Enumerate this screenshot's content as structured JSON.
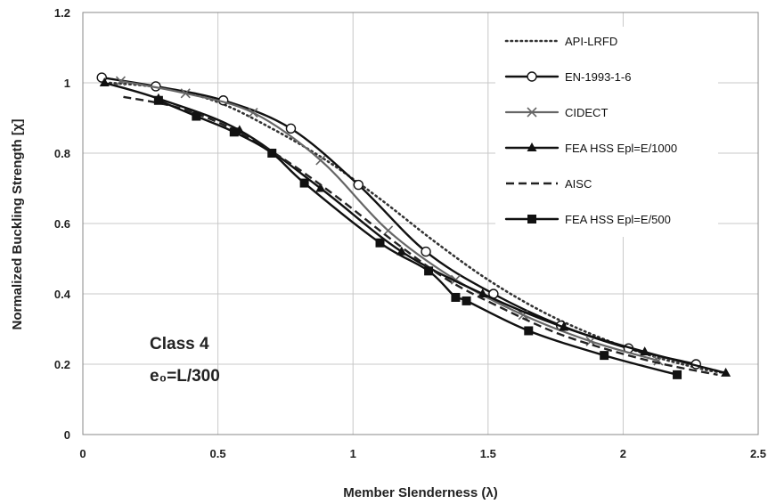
{
  "chart_data": {
    "type": "line",
    "title": "",
    "xlabel": "Member Slenderness (λ)",
    "ylabel": "Normalized Buckling Strength [χ]",
    "xlim": [
      0,
      2.5
    ],
    "ylim": [
      0,
      1.2
    ],
    "xticks": [
      "0",
      "0.5",
      "1",
      "1.5",
      "2",
      "2.5"
    ],
    "yticks": [
      "0",
      "0.2",
      "0.4",
      "0.6",
      "0.8",
      "1",
      "1.2"
    ],
    "grid": true,
    "legend_position": "top-right",
    "annotations": [
      "Class 4",
      "e₀=L/300"
    ],
    "series": [
      {
        "name": "API-LRFD",
        "style": "dotted",
        "color": "#333333",
        "marker": "none",
        "x": [
          0.1,
          0.3,
          0.5,
          0.7,
          0.9,
          1.1,
          1.3,
          1.5,
          1.7,
          1.9,
          2.1,
          2.3,
          2.38
        ],
        "y": [
          1.0,
          0.985,
          0.945,
          0.87,
          0.78,
          0.67,
          0.55,
          0.44,
          0.35,
          0.28,
          0.225,
          0.185,
          0.175
        ]
      },
      {
        "name": "EN-1993-1-6",
        "style": "solid",
        "color": "#111111",
        "marker": "circle",
        "x": [
          0.07,
          0.27,
          0.52,
          0.77,
          1.02,
          1.27,
          1.52,
          1.77,
          2.02,
          2.27
        ],
        "y": [
          1.015,
          0.99,
          0.95,
          0.87,
          0.71,
          0.52,
          0.4,
          0.31,
          0.245,
          0.2
        ]
      },
      {
        "name": "CIDECT",
        "style": "solid",
        "color": "#666666",
        "marker": "x",
        "x": [
          0.14,
          0.38,
          0.63,
          0.88,
          1.13,
          1.38,
          1.63,
          1.88,
          2.13
        ],
        "y": [
          1.005,
          0.97,
          0.915,
          0.78,
          0.58,
          0.44,
          0.34,
          0.265,
          0.21
        ]
      },
      {
        "name": "FEA HSS Epl=E/1000",
        "style": "solid",
        "color": "#111111",
        "marker": "triangle",
        "x": [
          0.08,
          0.28,
          0.58,
          0.88,
          1.18,
          1.48,
          1.78,
          2.08,
          2.38
        ],
        "y": [
          1.0,
          0.955,
          0.865,
          0.7,
          0.52,
          0.4,
          0.305,
          0.235,
          0.175
        ]
      },
      {
        "name": "AISC",
        "style": "dashed",
        "color": "#222222",
        "marker": "none",
        "x": [
          0.15,
          0.35,
          0.55,
          0.75,
          0.95,
          1.15,
          1.35,
          1.55,
          1.75,
          1.95,
          2.15,
          2.35
        ],
        "y": [
          0.96,
          0.93,
          0.87,
          0.78,
          0.67,
          0.55,
          0.44,
          0.36,
          0.29,
          0.24,
          0.2,
          0.17
        ]
      },
      {
        "name": "FEA HSS Epl=E/500",
        "style": "solid",
        "color": "#111111",
        "marker": "square",
        "x": [
          0.28,
          0.42,
          0.56,
          0.7,
          0.82,
          1.1,
          1.28,
          1.38,
          1.42,
          1.65,
          1.93,
          2.2
        ],
        "y": [
          0.95,
          0.905,
          0.86,
          0.8,
          0.715,
          0.545,
          0.465,
          0.39,
          0.38,
          0.295,
          0.225,
          0.17
        ]
      }
    ]
  }
}
